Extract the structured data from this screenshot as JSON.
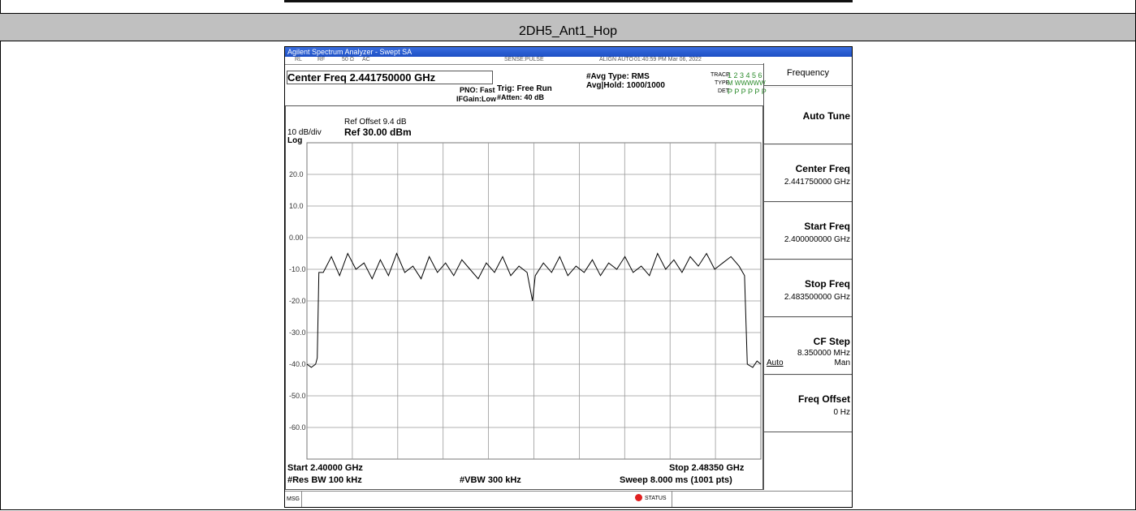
{
  "header": {
    "title": "2DH5_Ant1_Hop"
  },
  "screen": {
    "window_title": "Agilent Spectrum Analyzer - Swept SA",
    "status_bar": [
      "RL",
      "RF",
      "50 Ω",
      "AC",
      "SENSE:PULSE",
      "ALIGN AUTO",
      "01:40:59 PM Mar 06, 2022"
    ],
    "center_freq": "Center Freq 2.441750000 GHz",
    "settings": [
      "PNO: Fast",
      "IFGain:Low",
      "Trig: Free Run",
      "#Atten: 40 dB",
      "#Avg Type: RMS",
      "Avg|Hold: 1000/1000"
    ],
    "trace_info": {
      "trace": "TRACE",
      "trace_nums": "1 2 3 4 5 6",
      "type": "TYPE",
      "type_val": "M WWWWW",
      "det": "DET",
      "det_val": "P P P P P P"
    },
    "plot": {
      "ref_offset": "Ref Offset 9.4 dB",
      "scale": "10 dB/div",
      "ref_level": "Ref 30.00 dBm",
      "scale_type": "Log",
      "ylim": [
        -70,
        30
      ],
      "yticks": [
        {
          "value": 20,
          "label": "20.0"
        },
        {
          "value": 10,
          "label": "10.0"
        },
        {
          "value": 0,
          "label": "0.00"
        },
        {
          "value": -10,
          "label": "-10.0"
        },
        {
          "value": -20,
          "label": "-20.0"
        },
        {
          "value": -30,
          "label": "-30.0"
        },
        {
          "value": -40,
          "label": "-40.0"
        },
        {
          "value": -50,
          "label": "-50.0"
        },
        {
          "value": -60,
          "label": "-60.0"
        }
      ],
      "xlim": [
        2.4,
        2.4835
      ],
      "trace": {
        "x": [
          2.4,
          2.4008,
          2.4016,
          2.4019,
          2.4022,
          2.403,
          2.4045,
          2.406,
          2.4075,
          2.409,
          2.4105,
          2.412,
          2.4135,
          2.415,
          2.4165,
          2.418,
          2.4195,
          2.421,
          2.4225,
          2.424,
          2.4255,
          2.427,
          2.4285,
          2.43,
          2.4315,
          2.433,
          2.4345,
          2.436,
          2.4375,
          2.439,
          2.4405,
          2.4415,
          2.442,
          2.4435,
          2.445,
          2.4465,
          2.448,
          2.4495,
          2.451,
          2.4525,
          2.454,
          2.4555,
          2.457,
          2.4585,
          2.46,
          2.4615,
          2.463,
          2.4645,
          2.466,
          2.4675,
          2.469,
          2.4705,
          2.472,
          2.4735,
          2.475,
          2.4765,
          2.478,
          2.4795,
          2.4805,
          2.481,
          2.482,
          2.4828,
          2.4835
        ],
        "y": [
          -40,
          -41,
          -40,
          -38,
          -11,
          -11,
          -6,
          -12,
          -5,
          -10,
          -8,
          -13,
          -7,
          -12,
          -5,
          -11,
          -9,
          -13,
          -6,
          -11,
          -8,
          -12,
          -7,
          -10,
          -13,
          -8,
          -11,
          -6,
          -12,
          -9,
          -11,
          -20,
          -12,
          -8,
          -11,
          -6,
          -12,
          -9,
          -11,
          -7,
          -12,
          -8,
          -10,
          -6,
          -11,
          -9,
          -12,
          -5,
          -10,
          -7,
          -11,
          -6,
          -9,
          -5,
          -10,
          -8,
          -6,
          -9,
          -12,
          -40,
          -41,
          -39,
          -40
        ]
      }
    },
    "footer": {
      "start": "Start 2.40000 GHz",
      "stop": "Stop 2.48350 GHz",
      "rbw": "#Res BW 100 kHz",
      "vbw": "#VBW 300 kHz",
      "sweep": "Sweep 8.000 ms (1001 pts)"
    },
    "msg": "MSG",
    "status": "STATUS",
    "menu": {
      "title": "Frequency",
      "items": [
        {
          "label": "Auto Tune"
        },
        {
          "label": "Center Freq",
          "value": "2.441750000 GHz"
        },
        {
          "label": "Start Freq",
          "value": "2.400000000 GHz"
        },
        {
          "label": "Stop Freq",
          "value": "2.483500000 GHz"
        },
        {
          "label": "CF Step",
          "value": "8.350000 MHz",
          "options": [
            "Auto",
            "Man"
          ]
        },
        {
          "label": "Freq Offset",
          "value": "0 Hz"
        }
      ]
    }
  }
}
